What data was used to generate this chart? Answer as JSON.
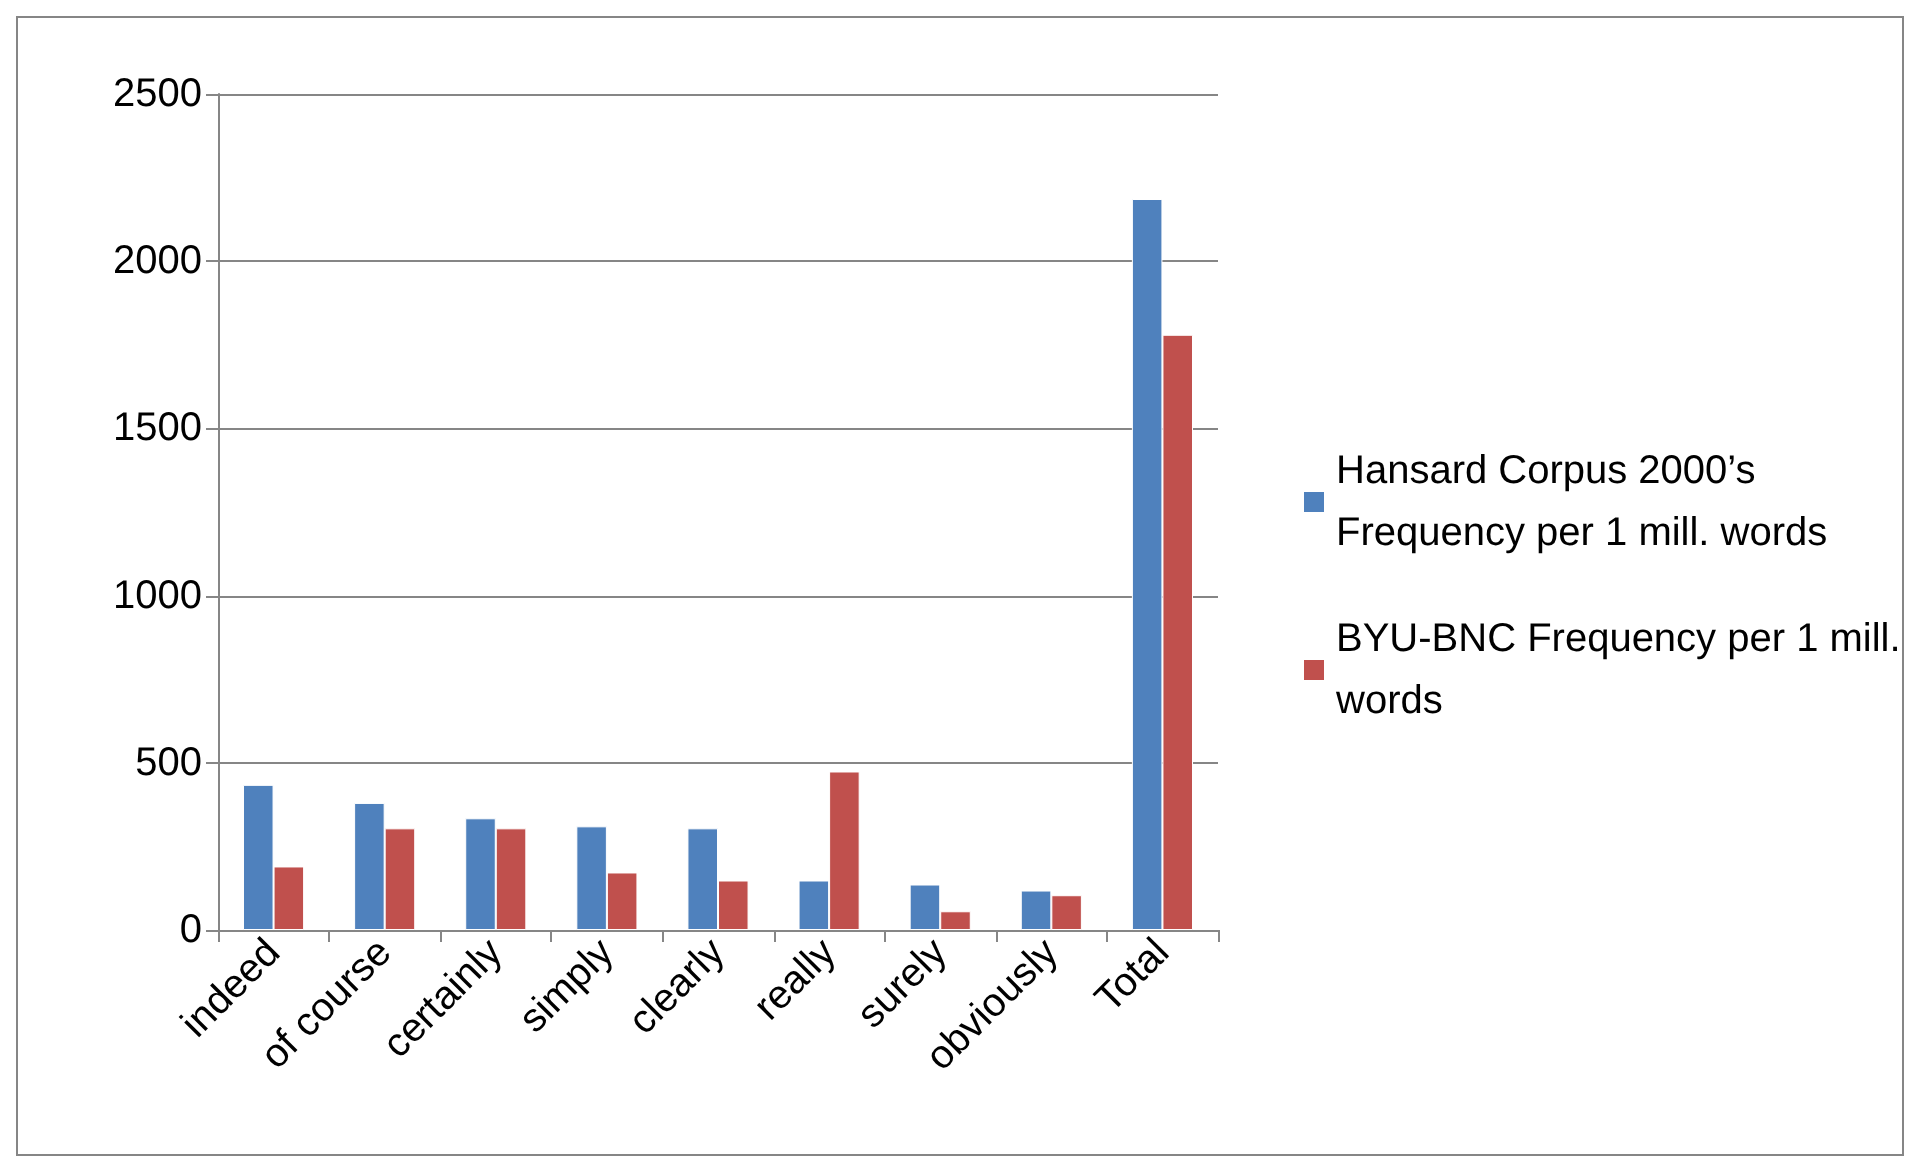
{
  "chart_data": {
    "type": "bar",
    "categories": [
      "indeed",
      "of course",
      "certainly",
      "simply",
      "clearly",
      "really",
      "surely",
      "obviously",
      "Total"
    ],
    "series": [
      {
        "name": "Hansard Corpus 2000’s Frequency per 1 mill. words",
        "color": "#4f81bd",
        "values": [
          434,
          380,
          334,
          310,
          304,
          148,
          136,
          118,
          2186
        ]
      },
      {
        "name": "BYU-BNC Frequency per 1 mill. words",
        "color": "#c0504d",
        "values": [
          190,
          304,
          304,
          172,
          148,
          474,
          56,
          104,
          1780
        ]
      }
    ],
    "ylim": [
      0,
      2500
    ],
    "yticks": [
      0,
      500,
      1000,
      1500,
      2000,
      2500
    ],
    "grid": "y",
    "legend": "right"
  }
}
